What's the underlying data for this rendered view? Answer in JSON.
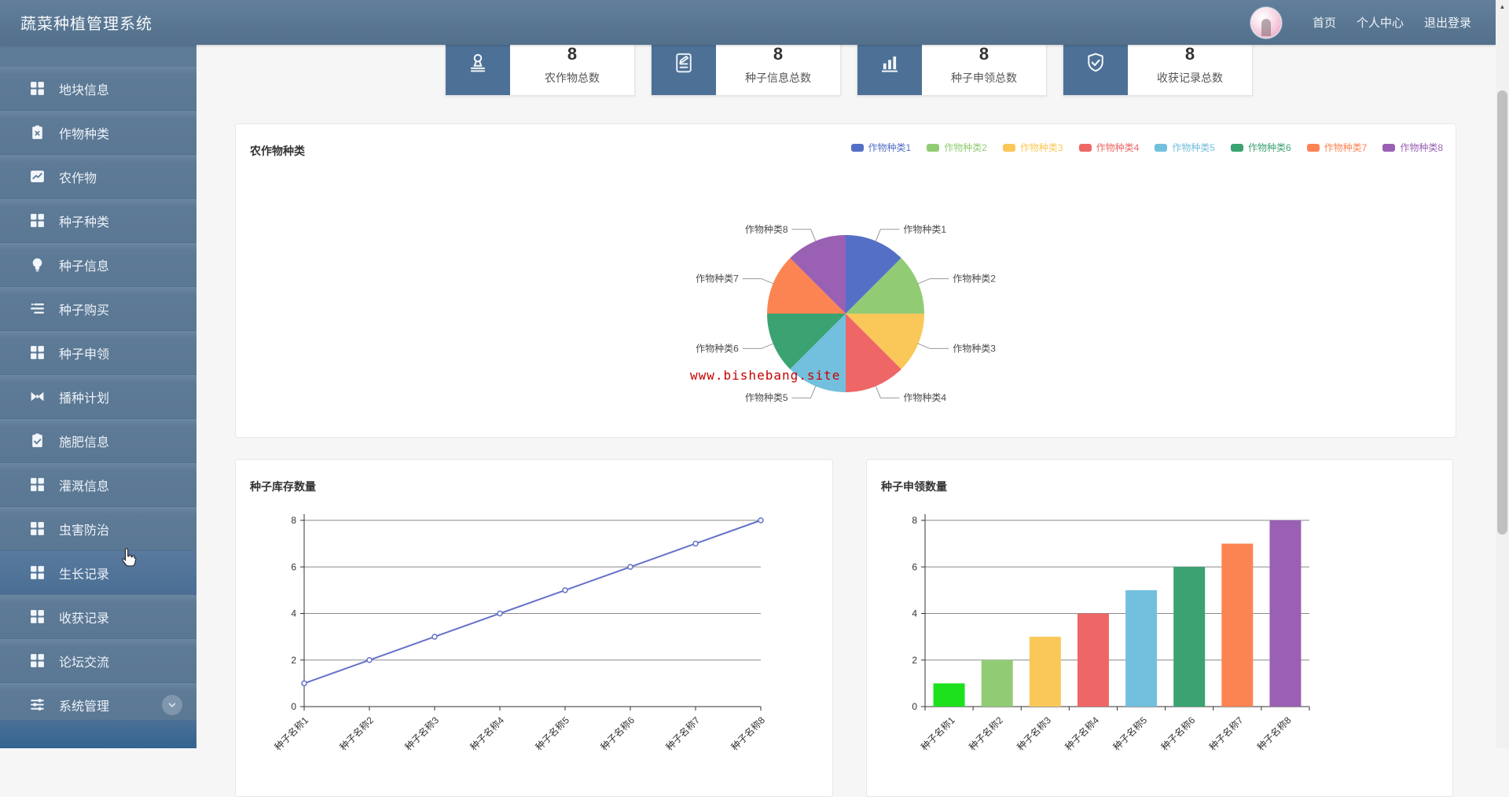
{
  "app": {
    "title": "蔬菜种植管理系统"
  },
  "navbar": {
    "links": [
      {
        "label": "首页"
      },
      {
        "label": "个人中心"
      },
      {
        "label": "退出登录"
      }
    ]
  },
  "sidebar": {
    "items": [
      {
        "label": "地块信息",
        "icon": "grid-icon"
      },
      {
        "label": "作物种类",
        "icon": "clipboard-x-icon"
      },
      {
        "label": "农作物",
        "icon": "trend-chart-icon"
      },
      {
        "label": "种子种类",
        "icon": "grid-icon"
      },
      {
        "label": "种子信息",
        "icon": "bulb-icon"
      },
      {
        "label": "种子购买",
        "icon": "list-icon"
      },
      {
        "label": "种子申领",
        "icon": "grid-icon"
      },
      {
        "label": "播种计划",
        "icon": "bowtie-icon"
      },
      {
        "label": "施肥信息",
        "icon": "clipboard-check-icon"
      },
      {
        "label": "灌溉信息",
        "icon": "grid-icon"
      },
      {
        "label": "虫害防治",
        "icon": "grid-icon"
      },
      {
        "label": "生长记录",
        "icon": "grid-icon",
        "hovered": true
      },
      {
        "label": "收获记录",
        "icon": "grid-icon"
      },
      {
        "label": "论坛交流",
        "icon": "grid-icon"
      },
      {
        "label": "系统管理",
        "icon": "sliders-icon",
        "expandable": true
      }
    ]
  },
  "stats": {
    "cards": [
      {
        "value": "8",
        "label": "农作物总数",
        "icon": "stamp-icon"
      },
      {
        "value": "8",
        "label": "种子信息总数",
        "icon": "document-edit-icon"
      },
      {
        "value": "8",
        "label": "种子申领总数",
        "icon": "bar-chart-icon"
      },
      {
        "value": "8",
        "label": "收获记录总数",
        "icon": "shield-check-icon"
      }
    ]
  },
  "watermark": {
    "text": "www.bishebang.site",
    "color": "#c80000"
  },
  "chart_data": [
    {
      "type": "pie",
      "title": "农作物种类",
      "labels": [
        "作物种类1",
        "作物种类2",
        "作物种类3",
        "作物种类4",
        "作物种类5",
        "作物种类6",
        "作物种类7",
        "作物种类8"
      ],
      "values": [
        1,
        1,
        1,
        1,
        1,
        1,
        1,
        1
      ],
      "colors": [
        "#5470c6",
        "#91cc75",
        "#fac858",
        "#ee6666",
        "#73c0de",
        "#3ba272",
        "#fc8452",
        "#9a60b4"
      ],
      "legend_position": "top-right",
      "label_lines": true
    },
    {
      "type": "line",
      "title": "种子库存数量",
      "categories": [
        "种子名称1",
        "种子名称2",
        "种子名称3",
        "种子名称4",
        "种子名称5",
        "种子名称6",
        "种子名称7",
        "种子名称8"
      ],
      "values": [
        1,
        2,
        3,
        4,
        5,
        6,
        7,
        8
      ],
      "ylim": [
        0,
        8
      ],
      "yticks": [
        0,
        2,
        4,
        6,
        8
      ],
      "line_color": "#6472c8",
      "grid": true,
      "x_label_rotate": 45
    },
    {
      "type": "bar",
      "title": "种子申领数量",
      "categories": [
        "种子名称1",
        "种子名称2",
        "种子名称3",
        "种子名称4",
        "种子名称5",
        "种子名称6",
        "种子名称7",
        "种子名称8"
      ],
      "values": [
        1,
        2,
        3,
        4,
        5,
        6,
        7,
        8
      ],
      "ylim": [
        0,
        8
      ],
      "yticks": [
        0,
        2,
        4,
        6,
        8
      ],
      "bar_colors": [
        "#1ee11e",
        "#91cc75",
        "#fac858",
        "#ee6666",
        "#73c0de",
        "#3ba272",
        "#fc8452",
        "#9a60b4"
      ],
      "grid": true,
      "x_label_rotate": 45
    }
  ]
}
